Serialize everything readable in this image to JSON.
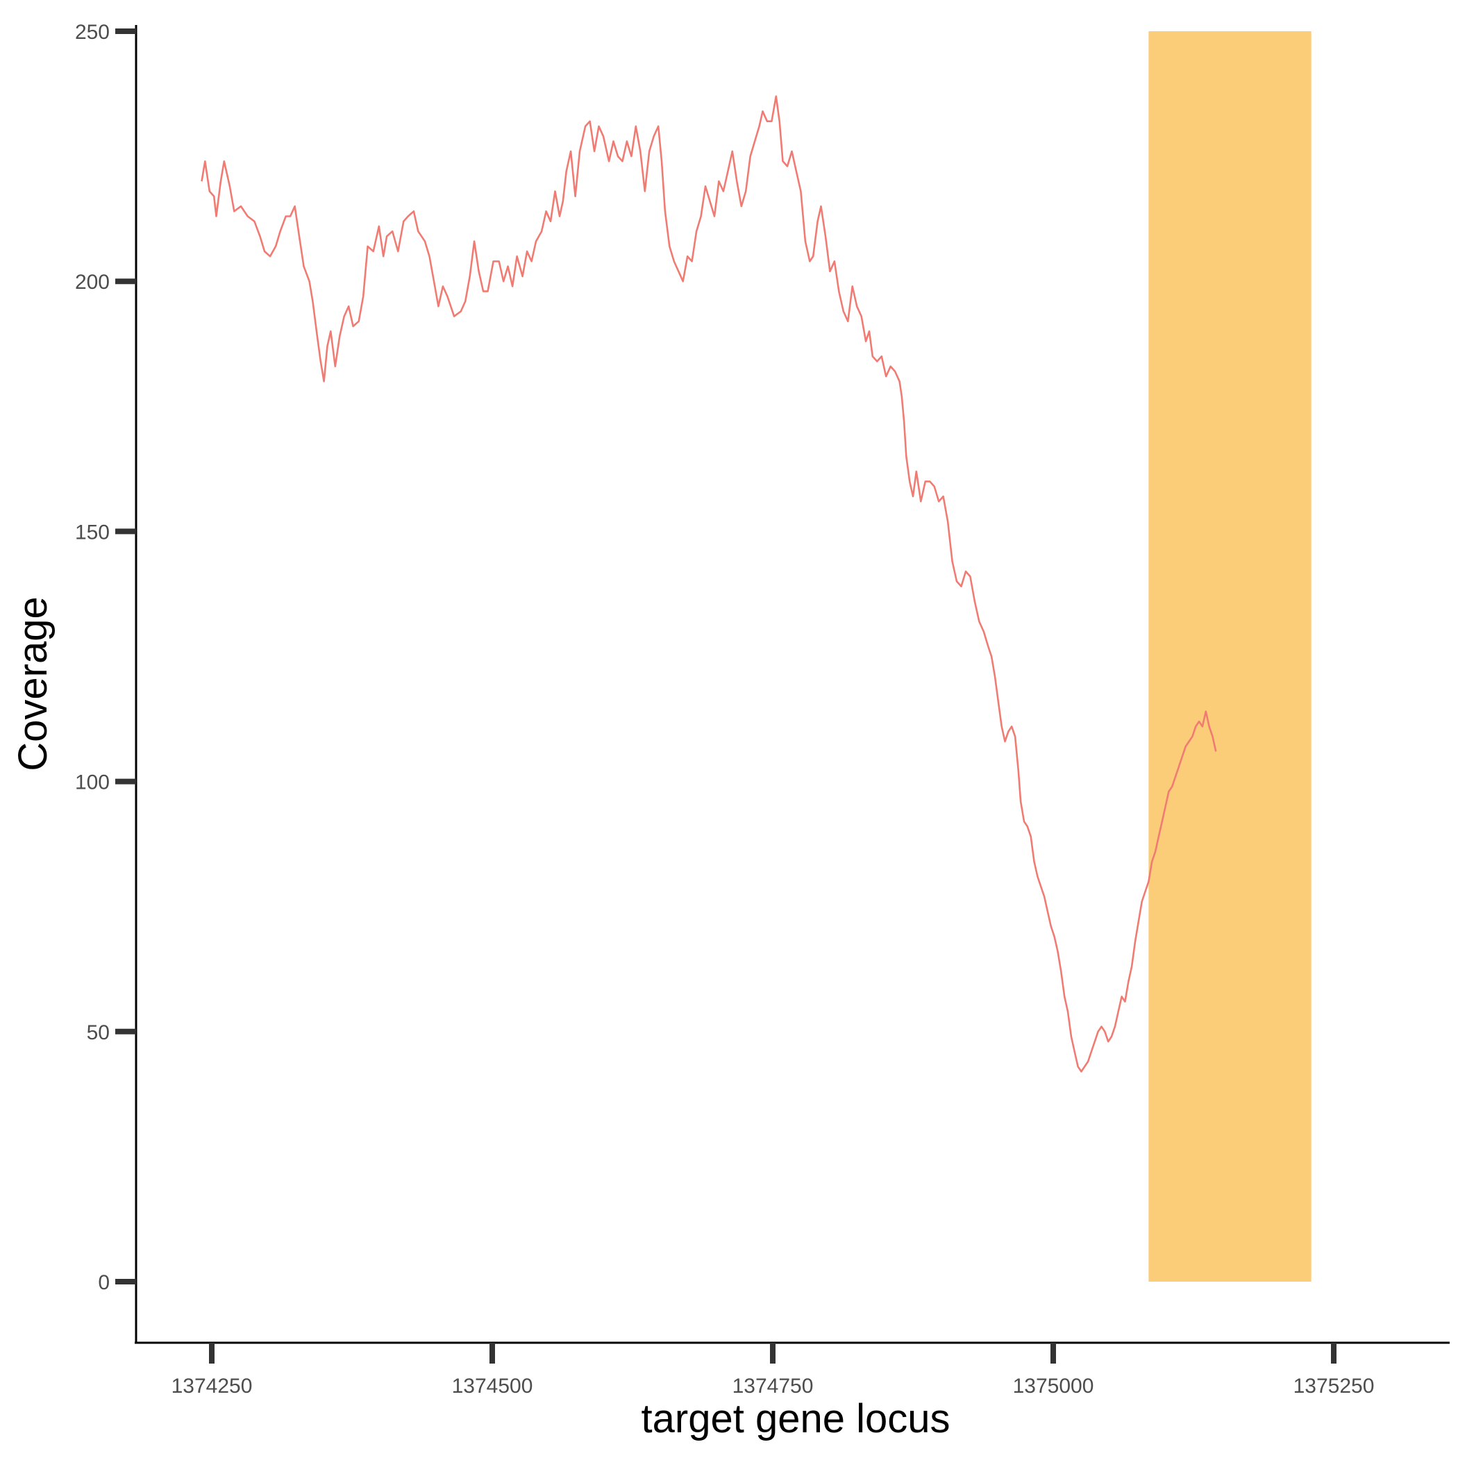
{
  "chart_data": {
    "type": "line",
    "title": "",
    "xlabel": "target gene locus",
    "ylabel": "Coverage",
    "xlim": [
      1374190,
      1375340
    ],
    "ylim": [
      -12,
      251
    ],
    "x_ticks": [
      1374250,
      1374500,
      1374750,
      1375000,
      1375250
    ],
    "x_tick_labels": [
      "1374250",
      "1374500",
      "1374750",
      "1375000",
      "1375250"
    ],
    "y_ticks": [
      0,
      50,
      100,
      150,
      200,
      250
    ],
    "y_tick_labels": [
      "0",
      "50",
      "100",
      "150",
      "200",
      "250"
    ],
    "grid": false,
    "legend": "none",
    "highlight_region": {
      "x": [
        1375085,
        1375230
      ],
      "y": [
        0,
        250
      ],
      "color": "#fccd79"
    },
    "series": [
      {
        "color": "#f07b72",
        "points": [
          [
            1374241,
            220
          ],
          [
            1374244,
            224
          ],
          [
            1374248,
            218
          ],
          [
            1374252,
            217
          ],
          [
            1374254,
            213
          ],
          [
            1374258,
            220
          ],
          [
            1374261,
            224
          ],
          [
            1374266,
            219
          ],
          [
            1374270,
            214
          ],
          [
            1374276,
            215
          ],
          [
            1374282,
            213
          ],
          [
            1374288,
            212
          ],
          [
            1374293,
            209
          ],
          [
            1374297,
            206
          ],
          [
            1374302,
            205
          ],
          [
            1374307,
            207
          ],
          [
            1374311,
            210
          ],
          [
            1374316,
            213
          ],
          [
            1374320,
            213
          ],
          [
            1374324,
            215
          ],
          [
            1374328,
            209
          ],
          [
            1374332,
            203
          ],
          [
            1374337,
            200
          ],
          [
            1374340,
            196
          ],
          [
            1374344,
            189
          ],
          [
            1374347,
            184
          ],
          [
            1374350,
            180
          ],
          [
            1374353,
            187
          ],
          [
            1374356,
            190
          ],
          [
            1374360,
            183
          ],
          [
            1374364,
            189
          ],
          [
            1374368,
            193
          ],
          [
            1374372,
            195
          ],
          [
            1374376,
            191
          ],
          [
            1374381,
            192
          ],
          [
            1374385,
            197
          ],
          [
            1374389,
            207
          ],
          [
            1374394,
            206
          ],
          [
            1374399,
            211
          ],
          [
            1374403,
            205
          ],
          [
            1374406,
            209
          ],
          [
            1374411,
            210
          ],
          [
            1374416,
            206
          ],
          [
            1374421,
            212
          ],
          [
            1374425,
            213
          ],
          [
            1374430,
            214
          ],
          [
            1374434,
            210
          ],
          [
            1374440,
            208
          ],
          [
            1374444,
            205
          ],
          [
            1374448,
            200
          ],
          [
            1374452,
            195
          ],
          [
            1374456,
            199
          ],
          [
            1374460,
            197
          ],
          [
            1374466,
            193
          ],
          [
            1374472,
            194
          ],
          [
            1374476,
            196
          ],
          [
            1374480,
            201
          ],
          [
            1374484,
            208
          ],
          [
            1374488,
            202
          ],
          [
            1374492,
            198
          ],
          [
            1374496,
            198
          ],
          [
            1374501,
            204
          ],
          [
            1374506,
            204
          ],
          [
            1374510,
            200
          ],
          [
            1374514,
            203
          ],
          [
            1374518,
            199
          ],
          [
            1374522,
            205
          ],
          [
            1374527,
            201
          ],
          [
            1374531,
            206
          ],
          [
            1374535,
            204
          ],
          [
            1374539,
            208
          ],
          [
            1374544,
            210
          ],
          [
            1374548,
            214
          ],
          [
            1374552,
            212
          ],
          [
            1374556,
            218
          ],
          [
            1374560,
            213
          ],
          [
            1374563,
            216
          ],
          [
            1374566,
            222
          ],
          [
            1374570,
            226
          ],
          [
            1374574,
            217
          ],
          [
            1374578,
            226
          ],
          [
            1374583,
            231
          ],
          [
            1374587,
            232
          ],
          [
            1374591,
            226
          ],
          [
            1374595,
            231
          ],
          [
            1374599,
            229
          ],
          [
            1374604,
            224
          ],
          [
            1374608,
            228
          ],
          [
            1374612,
            225
          ],
          [
            1374616,
            224
          ],
          [
            1374620,
            228
          ],
          [
            1374624,
            225
          ],
          [
            1374628,
            231
          ],
          [
            1374632,
            226
          ],
          [
            1374636,
            218
          ],
          [
            1374640,
            226
          ],
          [
            1374644,
            229
          ],
          [
            1374648,
            231
          ],
          [
            1374651,
            224
          ],
          [
            1374654,
            214
          ],
          [
            1374658,
            207
          ],
          [
            1374662,
            204
          ],
          [
            1374666,
            202
          ],
          [
            1374670,
            200
          ],
          [
            1374674,
            205
          ],
          [
            1374678,
            204
          ],
          [
            1374682,
            210
          ],
          [
            1374686,
            213
          ],
          [
            1374690,
            219
          ],
          [
            1374694,
            216
          ],
          [
            1374698,
            213
          ],
          [
            1374702,
            220
          ],
          [
            1374706,
            218
          ],
          [
            1374710,
            222
          ],
          [
            1374714,
            226
          ],
          [
            1374718,
            220
          ],
          [
            1374722,
            215
          ],
          [
            1374726,
            218
          ],
          [
            1374730,
            225
          ],
          [
            1374734,
            228
          ],
          [
            1374738,
            231
          ],
          [
            1374741,
            234
          ],
          [
            1374745,
            232
          ],
          [
            1374749,
            232
          ],
          [
            1374753,
            237
          ],
          [
            1374756,
            232
          ],
          [
            1374759,
            224
          ],
          [
            1374763,
            223
          ],
          [
            1374767,
            226
          ],
          [
            1374771,
            222
          ],
          [
            1374775,
            218
          ],
          [
            1374779,
            208
          ],
          [
            1374783,
            204
          ],
          [
            1374786,
            205
          ],
          [
            1374790,
            212
          ],
          [
            1374793,
            215
          ],
          [
            1374797,
            209
          ],
          [
            1374801,
            202
          ],
          [
            1374805,
            204
          ],
          [
            1374809,
            198
          ],
          [
            1374813,
            194
          ],
          [
            1374817,
            192
          ],
          [
            1374821,
            199
          ],
          [
            1374825,
            195
          ],
          [
            1374829,
            193
          ],
          [
            1374833,
            188
          ],
          [
            1374836,
            190
          ],
          [
            1374839,
            185
          ],
          [
            1374843,
            184
          ],
          [
            1374847,
            185
          ],
          [
            1374851,
            181
          ],
          [
            1374855,
            183
          ],
          [
            1374859,
            182
          ],
          [
            1374863,
            180
          ],
          [
            1374865,
            177
          ],
          [
            1374867,
            172
          ],
          [
            1374869,
            165
          ],
          [
            1374872,
            160
          ],
          [
            1374875,
            157
          ],
          [
            1374878,
            162
          ],
          [
            1374882,
            156
          ],
          [
            1374886,
            160
          ],
          [
            1374890,
            160
          ],
          [
            1374894,
            159
          ],
          [
            1374898,
            156
          ],
          [
            1374902,
            157
          ],
          [
            1374906,
            152
          ],
          [
            1374910,
            144
          ],
          [
            1374914,
            140
          ],
          [
            1374918,
            139
          ],
          [
            1374922,
            142
          ],
          [
            1374926,
            141
          ],
          [
            1374930,
            136
          ],
          [
            1374934,
            132
          ],
          [
            1374938,
            130
          ],
          [
            1374942,
            127
          ],
          [
            1374945,
            125
          ],
          [
            1374948,
            121
          ],
          [
            1374951,
            116
          ],
          [
            1374954,
            111
          ],
          [
            1374957,
            108
          ],
          [
            1374960,
            110
          ],
          [
            1374963,
            111
          ],
          [
            1374966,
            109
          ],
          [
            1374969,
            102
          ],
          [
            1374971,
            96
          ],
          [
            1374974,
            92
          ],
          [
            1374977,
            91
          ],
          [
            1374980,
            89
          ],
          [
            1374983,
            84
          ],
          [
            1374986,
            81
          ],
          [
            1374989,
            79
          ],
          [
            1374992,
            77
          ],
          [
            1374995,
            74
          ],
          [
            1374998,
            71
          ],
          [
            1375001,
            69
          ],
          [
            1375004,
            66
          ],
          [
            1375007,
            62
          ],
          [
            1375010,
            57
          ],
          [
            1375013,
            54
          ],
          [
            1375016,
            49
          ],
          [
            1375019,
            46
          ],
          [
            1375022,
            43
          ],
          [
            1375025,
            42
          ],
          [
            1375028,
            43
          ],
          [
            1375031,
            44
          ],
          [
            1375034,
            46
          ],
          [
            1375037,
            48
          ],
          [
            1375040,
            50
          ],
          [
            1375043,
            51
          ],
          [
            1375046,
            50
          ],
          [
            1375049,
            48
          ],
          [
            1375052,
            49
          ],
          [
            1375055,
            51
          ],
          [
            1375058,
            54
          ],
          [
            1375061,
            57
          ],
          [
            1375064,
            56
          ],
          [
            1375067,
            60
          ],
          [
            1375070,
            63
          ],
          [
            1375073,
            68
          ],
          [
            1375076,
            72
          ],
          [
            1375079,
            76
          ],
          [
            1375082,
            78
          ],
          [
            1375085,
            80
          ],
          [
            1375088,
            84
          ],
          [
            1375091,
            86
          ],
          [
            1375094,
            89
          ],
          [
            1375097,
            92
          ],
          [
            1375100,
            95
          ],
          [
            1375103,
            98
          ],
          [
            1375106,
            99
          ],
          [
            1375109,
            101
          ],
          [
            1375112,
            103
          ],
          [
            1375115,
            105
          ],
          [
            1375118,
            107
          ],
          [
            1375121,
            108
          ],
          [
            1375124,
            109
          ],
          [
            1375127,
            111
          ],
          [
            1375130,
            112
          ],
          [
            1375133,
            111
          ],
          [
            1375136,
            114
          ],
          [
            1375139,
            111
          ],
          [
            1375142,
            109
          ],
          [
            1375145,
            106
          ]
        ]
      }
    ]
  }
}
